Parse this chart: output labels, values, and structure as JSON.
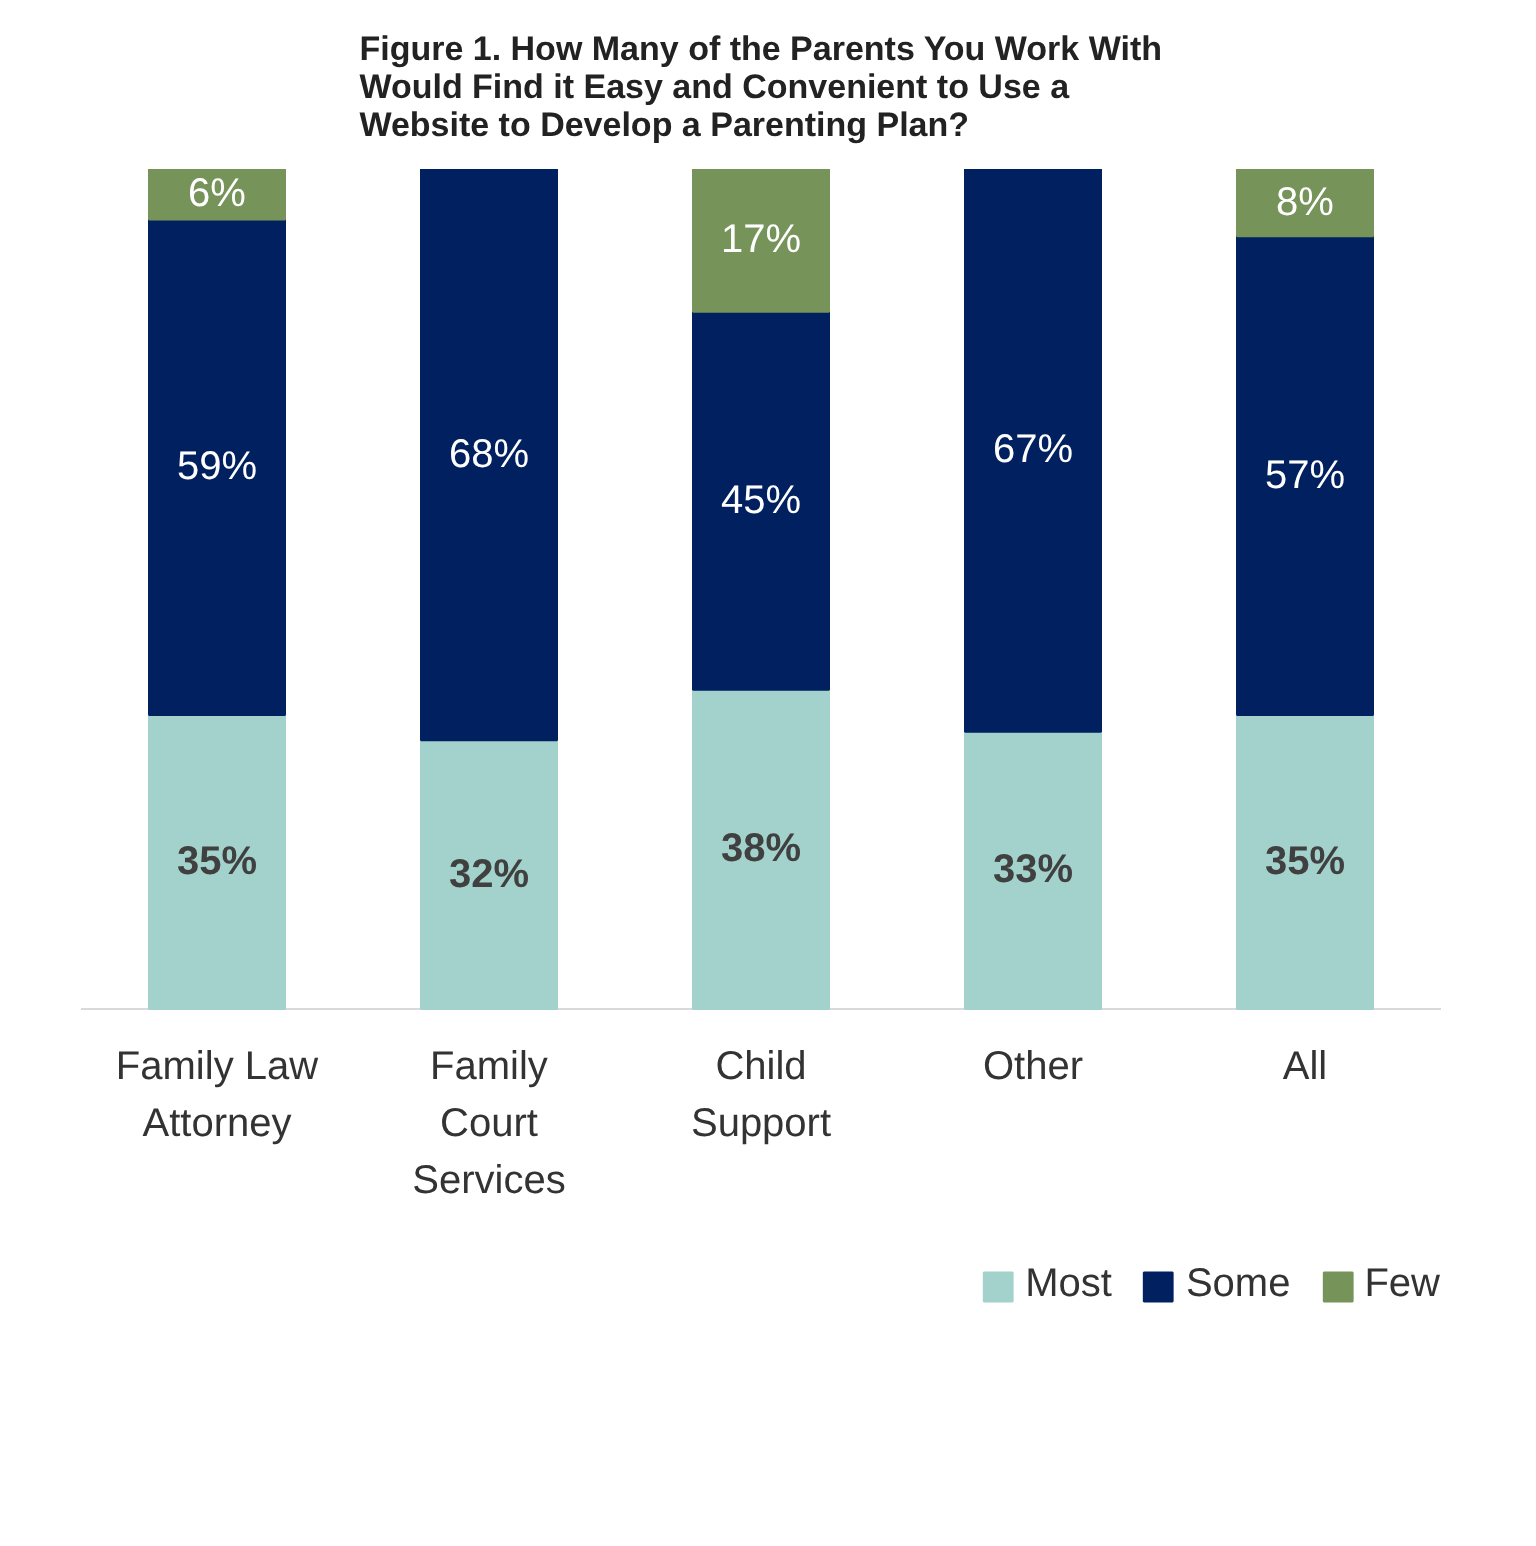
{
  "chart_data": {
    "type": "bar",
    "title": "Figure 1. How Many of the Parents You Work With\nWould Find it Easy and Convenient to Use a\nWebsite to Develop a Parenting Plan?",
    "categories": [
      "Family Law\nAttorney",
      "Family\nCourt\nServices",
      "Child\nSupport",
      "Other",
      "All"
    ],
    "stacked": true,
    "legend": "bottom right",
    "grid": false,
    "series": [
      {
        "name": "Most",
        "color": "#a2d2cb",
        "values": [
          35,
          32,
          38,
          33,
          35
        ],
        "value_labels": [
          "35%",
          "32%",
          "38%",
          "33%",
          "35%"
        ]
      },
      {
        "name": "Some",
        "color": "#002060",
        "values": [
          59,
          68,
          45,
          67,
          57
        ],
        "value_labels": [
          "59%",
          "68%",
          "45%",
          "67%",
          "57%"
        ]
      },
      {
        "name": "Few",
        "color": "#76935a",
        "values": [
          6,
          null,
          17,
          null,
          8
        ],
        "value_labels": [
          "6%",
          null,
          "17%",
          null,
          "8%"
        ]
      }
    ]
  }
}
